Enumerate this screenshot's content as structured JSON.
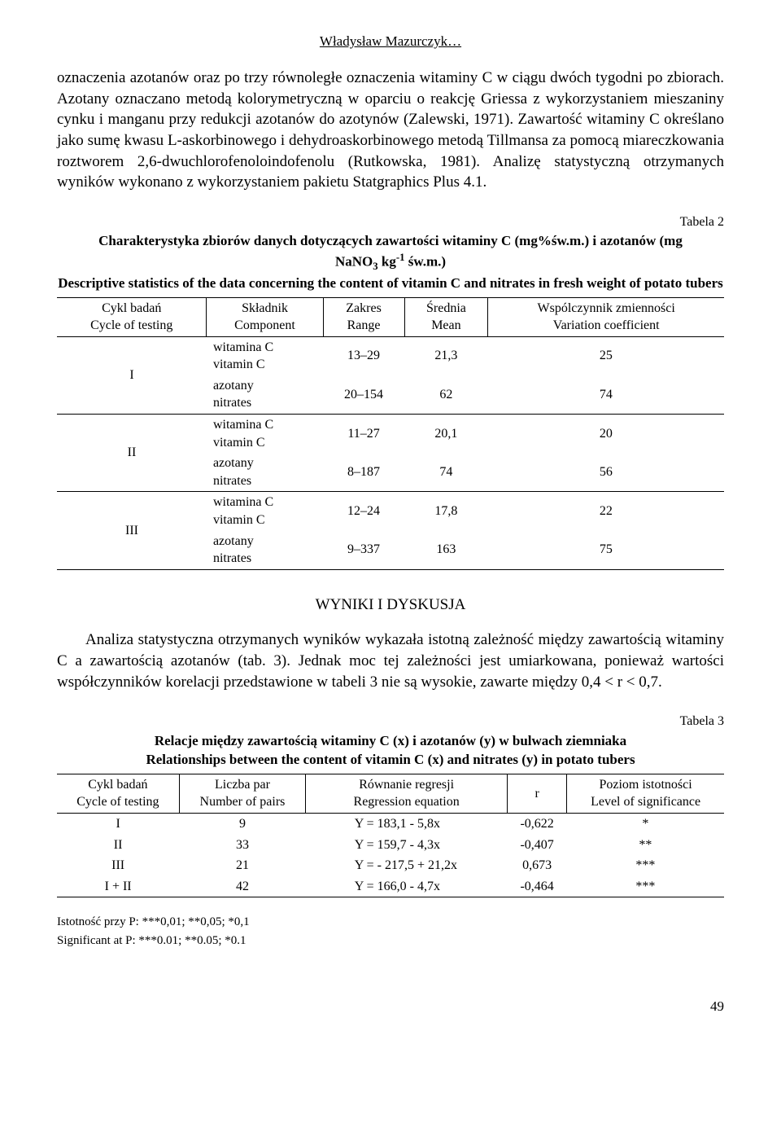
{
  "header": {
    "author": "Władysław Mazurczyk…"
  },
  "paragraph1": "oznaczenia azotanów oraz po trzy równoległe oznaczenia witaminy C w ciągu dwóch tygodni po zbiorach. Azotany oznaczano metodą kolorymetryczną w oparciu o reakcję Griessa z wykorzystaniem mieszaniny cynku i manganu przy redukcji azotanów do azotynów (Zalewski, 1971). Zawartość witaminy C określano jako sumę kwasu L-askorbinowego i dehydroaskorbinowego metodą Tillmansa za pomocą miareczkowania roztworem 2,6-dwuchlorofenoloindofenolu (Rutkowska, 1981). Analizę statystyczną otrzymanych wyników wykonano z wykorzystaniem pakietu Statgraphics Plus 4.1.",
  "table2": {
    "label": "Tabela 2",
    "title_pl_1": "Charakterystyka zbiorów danych dotyczących zawartości witaminy C (mg%św.m.) i azotanów (mg",
    "title_pl_2_html": "NaNO<sub>3</sub> kg<sup>-1</sup> św.m.)",
    "title_en": "Descriptive statistics of the data concerning the content of vitamin C and nitrates in fresh weight of potato tubers",
    "headers": {
      "c1_pl": "Cykl badań",
      "c1_en": "Cycle of testing",
      "c2_pl": "Składnik",
      "c2_en": "Component",
      "c3_pl": "Zakres",
      "c3_en": "Range",
      "c4_pl": "Średnia",
      "c4_en": "Mean",
      "c5_pl": "Wspólczynnik zmienności",
      "c5_en": "Variation coefficient"
    },
    "groups": [
      {
        "cycle": "I",
        "rows": [
          {
            "comp_pl": "witamina C",
            "comp_en": "vitamin C",
            "range": "13–29",
            "mean": "21,3",
            "cv": "25"
          },
          {
            "comp_pl": "azotany",
            "comp_en": "nitrates",
            "range": "20–154",
            "mean": "62",
            "cv": "74"
          }
        ]
      },
      {
        "cycle": "II",
        "rows": [
          {
            "comp_pl": "witamina C",
            "comp_en": "vitamin C",
            "range": "11–27",
            "mean": "20,1",
            "cv": "20"
          },
          {
            "comp_pl": "azotany",
            "comp_en": "nitrates",
            "range": "8–187",
            "mean": "74",
            "cv": "56"
          }
        ]
      },
      {
        "cycle": "III",
        "rows": [
          {
            "comp_pl": "witamina C",
            "comp_en": "vitamin C",
            "range": "12–24",
            "mean": "17,8",
            "cv": "22"
          },
          {
            "comp_pl": "azotany",
            "comp_en": "nitrates",
            "range": "9–337",
            "mean": "163",
            "cv": "75"
          }
        ]
      }
    ]
  },
  "section_title": "WYNIKI I DYSKUSJA",
  "paragraph2": "Analiza statystyczna otrzymanych wyników wykazała istotną zależność między zawartością witaminy C a zawartością azotanów (tab. 3). Jednak moc tej zależności jest umiarkowana, ponieważ wartości współczynników korelacji przedstawione w tabeli 3 nie są wysokie, zawarte między 0,4 < r < 0,7.",
  "table3": {
    "label": "Tabela 3",
    "title_pl": "Relacje między zawartością witaminy C (x) i azotanów (y) w bulwach ziemniaka",
    "title_en": "Relationships between the content of vitamin C (x) and nitrates (y) in potato tubers",
    "headers": {
      "c1_pl": "Cykl badań",
      "c1_en": "Cycle of testing",
      "c2_pl": "Liczba par",
      "c2_en": "Number of pairs",
      "c3_pl": "Równanie regresji",
      "c3_en": "Regression equation",
      "c4": "r",
      "c5_pl": "Poziom istotności",
      "c5_en": "Level of significance"
    },
    "rows": [
      {
        "cycle": "I",
        "pairs": "9",
        "eq": "Y = 183,1 - 5,8x",
        "r": "-0,622",
        "sig": "*"
      },
      {
        "cycle": "II",
        "pairs": "33",
        "eq": "Y = 159,7 - 4,3x",
        "r": "-0,407",
        "sig": "**"
      },
      {
        "cycle": "III",
        "pairs": "21",
        "eq": "Y = - 217,5 + 21,2x",
        "r": "0,673",
        "sig": "***"
      },
      {
        "cycle": "I + II",
        "pairs": "42",
        "eq": "Y = 166,0 - 4,7x",
        "r": "-0,464",
        "sig": "***"
      }
    ],
    "footnote1": "Istotność przy P: ***0,01; **0,05; *0,1",
    "footnote2": "Significant at P: ***0.01; **0.05; *0.1"
  },
  "page_number": "49"
}
